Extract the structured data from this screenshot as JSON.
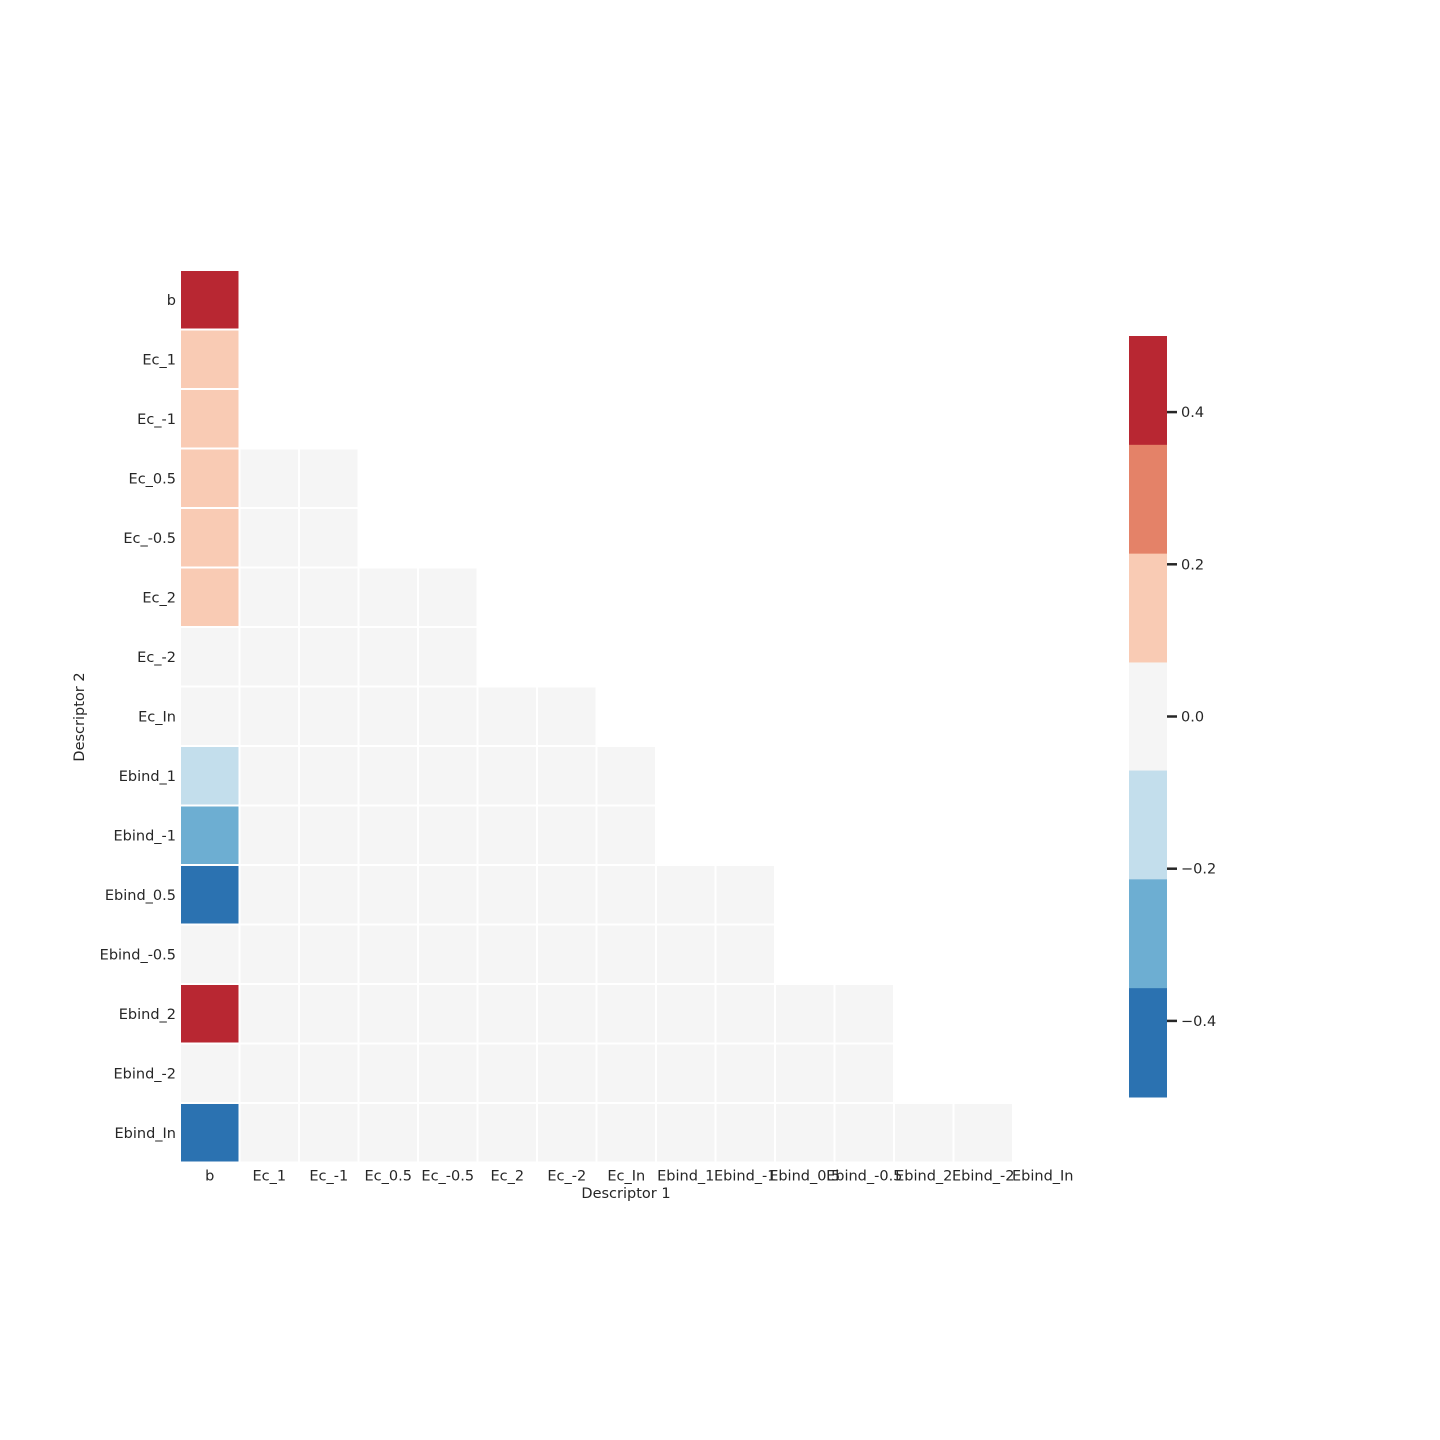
{
  "chart_data": {
    "type": "heatmap",
    "mask": "strict-upper-triangle-of-pairs",
    "xlabel": "Descriptor 1",
    "ylabel": "Descriptor 2",
    "x_categories": [
      "b",
      "Ec_1",
      "Ec_-1",
      "Ec_0.5",
      "Ec_-0.5",
      "Ec_2",
      "Ec_-2",
      "Ec_In",
      "Ebind_1",
      "Ebind_-1",
      "Ebind_0.5",
      "Ebind_-0.5",
      "Ebind_2",
      "Ebind_-2",
      "Ebind_In"
    ],
    "y_categories": [
      "b",
      "Ec_1",
      "Ec_-1",
      "Ec_0.5",
      "Ec_-0.5",
      "Ec_2",
      "Ec_-2",
      "Ec_In",
      "Ebind_1",
      "Ebind_-1",
      "Ebind_0.5",
      "Ebind_-0.5",
      "Ebind_2",
      "Ebind_-2",
      "Ebind_In"
    ],
    "rows": [
      [
        0.45
      ],
      [
        0.15
      ],
      [
        0.15
      ],
      [
        0.15,
        0.0,
        0.0
      ],
      [
        0.15,
        0.0,
        0.0
      ],
      [
        0.15,
        0.0,
        0.0,
        0.0,
        0.0
      ],
      [
        0.0,
        0.0,
        0.0,
        0.0,
        0.0
      ],
      [
        0.0,
        0.0,
        0.0,
        0.0,
        0.0,
        0.0,
        0.0
      ],
      [
        -0.15,
        0.0,
        0.0,
        0.0,
        0.0,
        0.0,
        0.0,
        0.0
      ],
      [
        -0.3,
        0.0,
        0.0,
        0.0,
        0.0,
        0.0,
        0.0,
        0.0
      ],
      [
        -0.45,
        0.0,
        0.0,
        0.0,
        0.0,
        0.0,
        0.0,
        0.0,
        0.0,
        0.0
      ],
      [
        0.0,
        0.0,
        0.0,
        0.0,
        0.0,
        0.0,
        0.0,
        0.0,
        0.0,
        0.0
      ],
      [
        0.45,
        0.0,
        0.0,
        0.0,
        0.0,
        0.0,
        0.0,
        0.0,
        0.0,
        0.0,
        0.0,
        0.0
      ],
      [
        0.0,
        0.0,
        0.0,
        0.0,
        0.0,
        0.0,
        0.0,
        0.0,
        0.0,
        0.0,
        0.0,
        0.0
      ],
      [
        -0.45,
        0.0,
        0.0,
        0.0,
        0.0,
        0.0,
        0.0,
        0.0,
        0.0,
        0.0,
        0.0,
        0.0,
        0.0,
        0.0
      ]
    ],
    "colorbar": {
      "vmin": -0.5,
      "vmax": 0.5,
      "ticks": [
        0.4,
        0.2,
        0.0,
        -0.2,
        -0.4
      ],
      "tick_labels": [
        "0.4",
        "0.2",
        "0.0",
        "−0.2",
        "−0.4"
      ],
      "bins": [
        {
          "from": 0.357,
          "to": 0.5,
          "color": "#b82732"
        },
        {
          "from": 0.214,
          "to": 0.357,
          "color": "#e48268"
        },
        {
          "from": 0.071,
          "to": 0.214,
          "color": "#f9cbb4"
        },
        {
          "from": -0.071,
          "to": 0.071,
          "color": "#f5f5f5"
        },
        {
          "from": -0.214,
          "to": -0.071,
          "color": "#c3deec"
        },
        {
          "from": -0.357,
          "to": -0.214,
          "color": "#6daed2"
        },
        {
          "from": -0.5,
          "to": -0.357,
          "color": "#2b72b1"
        }
      ]
    },
    "grid_line_color": "#ffffff"
  }
}
